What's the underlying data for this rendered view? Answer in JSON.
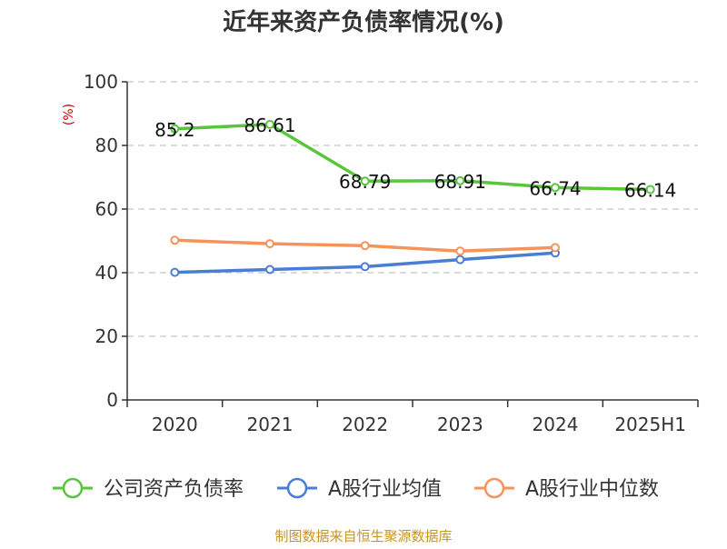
{
  "chart_data": {
    "type": "line",
    "title": "近年来资产负债率情况(%)",
    "ylabel": "(%)",
    "xlabel": "",
    "categories": [
      "2020",
      "2021",
      "2022",
      "2023",
      "2024",
      "2025H1"
    ],
    "ylim": [
      0,
      100
    ],
    "yticks": [
      0,
      20,
      40,
      60,
      80,
      100
    ],
    "grid": true,
    "legend_position": "bottom",
    "series": [
      {
        "name": "公司资产负债率",
        "color": "#5ac43c",
        "values": [
          85.2,
          86.61,
          68.79,
          68.91,
          66.74,
          66.14
        ],
        "data_labels": [
          "85.2",
          "86.61",
          "68.79",
          "68.91",
          "66.74",
          "66.14"
        ]
      },
      {
        "name": "A股行业均值",
        "color": "#4a7ed6",
        "values": [
          40.1,
          41.0,
          41.9,
          44.1,
          46.2,
          null
        ]
      },
      {
        "name": "A股行业中位数",
        "color": "#f5935a",
        "values": [
          50.2,
          49.1,
          48.5,
          46.8,
          47.9,
          null
        ]
      }
    ],
    "source": "制图数据来自恒生聚源数据库"
  }
}
